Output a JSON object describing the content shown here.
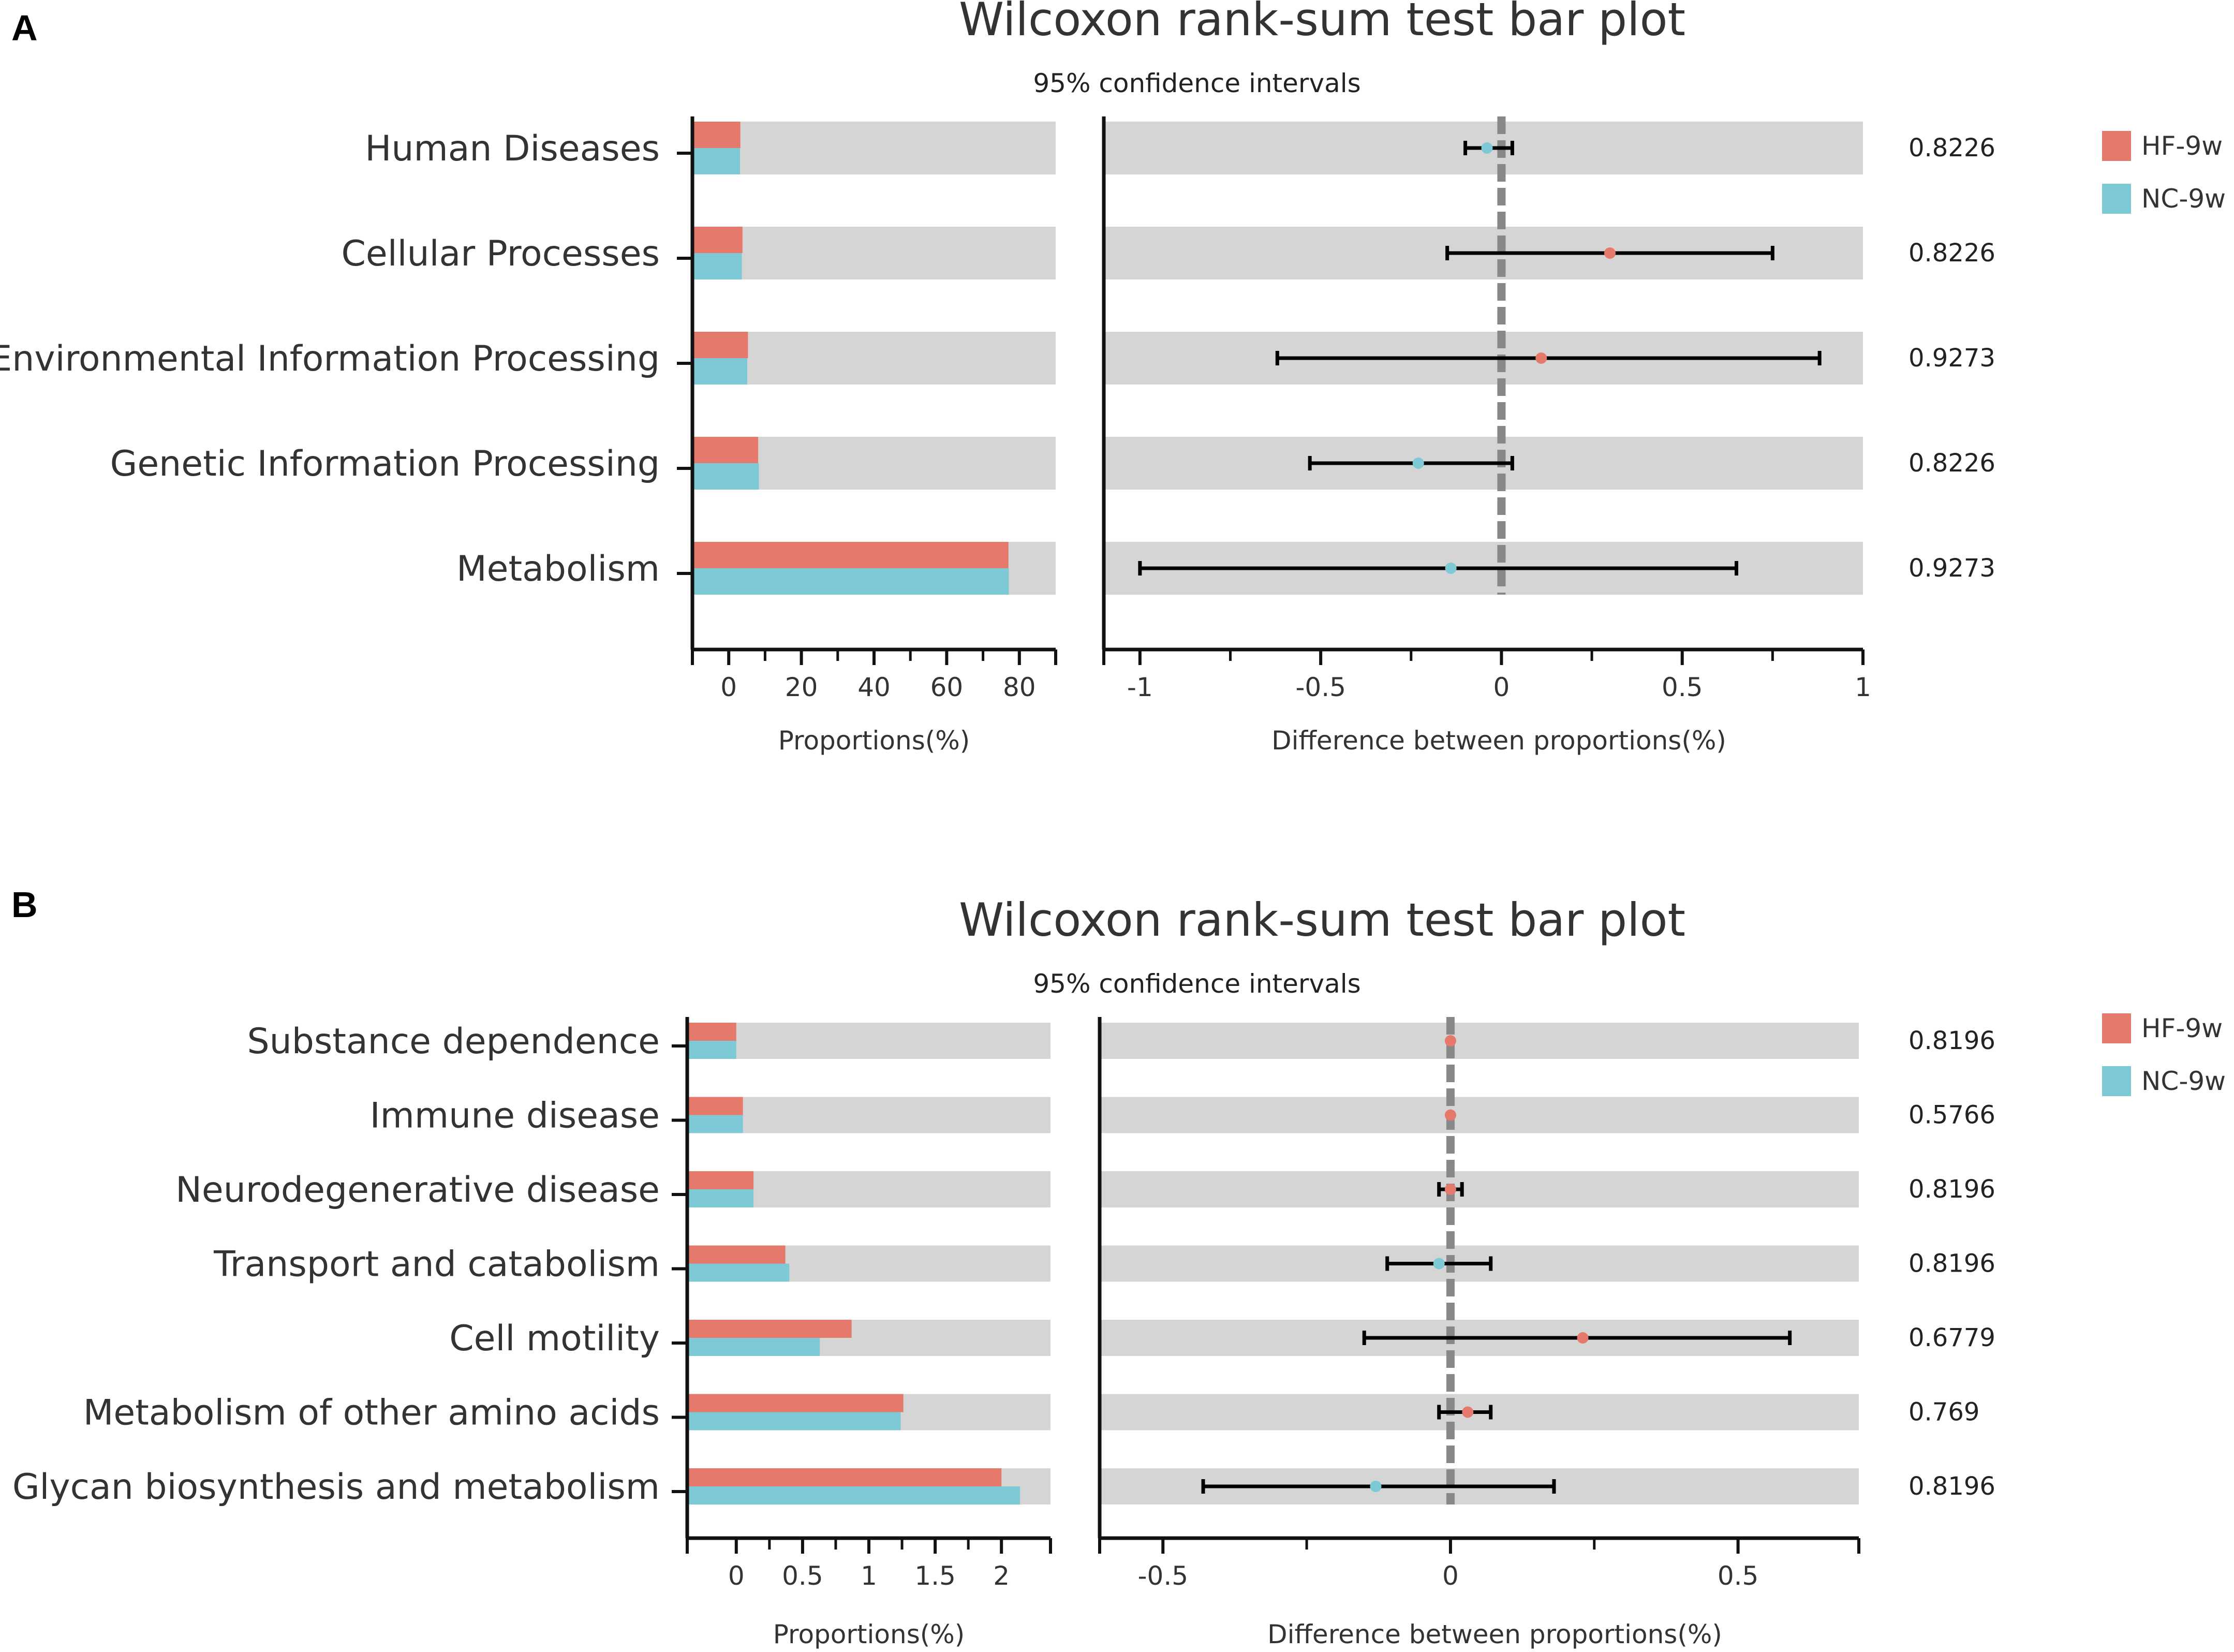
{
  "colors": {
    "hf": "#e57a6c",
    "nc": "#7ec9d6",
    "band": "#d5d5d5",
    "dash": "#888888",
    "axis": "#111111"
  },
  "chart_data": [
    {
      "panel": "A",
      "type": "bar",
      "title": "Wilcoxon rank-sum test bar plot",
      "subtitle": "95% confidence intervals",
      "categories": [
        "Human Diseases",
        "Cellular Processes",
        "Environmental Information Processing",
        "Genetic Information Processing",
        "Metabolism"
      ],
      "series": [
        {
          "name": "HF-9w",
          "values": [
            3.2,
            3.8,
            5.3,
            8.1,
            77.0
          ]
        },
        {
          "name": "NC-9w",
          "values": [
            3.1,
            3.6,
            5.1,
            8.3,
            77.1
          ]
        }
      ],
      "xlabel": "Proportions(%)",
      "xticks": [
        0,
        20,
        40,
        60,
        80
      ],
      "xlim": [
        -10,
        90
      ],
      "diff": {
        "xlabel": "Difference between proportions(%)",
        "xticks": [
          -1,
          -0.5,
          0,
          0.5,
          1
        ],
        "xlim": [
          -1.1,
          1.0
        ],
        "estimate": [
          -0.04,
          0.3,
          0.11,
          -0.23,
          -0.14
        ],
        "ci_low": [
          -0.1,
          -0.15,
          -0.62,
          -0.53,
          -1.0
        ],
        "ci_high": [
          0.03,
          0.75,
          0.88,
          0.03,
          0.65
        ],
        "higher": [
          "NC-9w",
          "HF-9w",
          "HF-9w",
          "NC-9w",
          "NC-9w"
        ]
      },
      "p_values": [
        "0.8226",
        "0.8226",
        "0.9273",
        "0.8226",
        "0.9273"
      ],
      "legend": [
        "HF-9w",
        "NC-9w"
      ]
    },
    {
      "panel": "B",
      "type": "bar",
      "title": "Wilcoxon rank-sum test bar plot",
      "subtitle": "95% confidence intervals",
      "categories": [
        "Substance dependence",
        "Immune disease",
        "Neurodegenerative disease",
        "Transport and catabolism",
        "Cell motility",
        "Metabolism of other amino acids",
        "Glycan biosynthesis and metabolism"
      ],
      "series": [
        {
          "name": "HF-9w",
          "values": [
            0.0,
            0.05,
            0.13,
            0.37,
            0.87,
            1.26,
            2.0
          ]
        },
        {
          "name": "NC-9w",
          "values": [
            0.0,
            0.05,
            0.13,
            0.4,
            0.63,
            1.24,
            2.14
          ]
        }
      ],
      "xlabel": "Proportions(%)",
      "xticks": [
        0,
        0.5,
        1,
        1.5,
        2
      ],
      "xticklabels": [
        "0",
        "0.5",
        "1",
        "1.5",
        "2"
      ],
      "xlim": [
        -0.37,
        2.37
      ],
      "diff": {
        "xlabel": "Difference between proportions(%)",
        "xticks": [
          -0.5,
          0,
          0.5
        ],
        "xlim": [
          -0.61,
          0.71
        ],
        "estimate": [
          0.0,
          0.0,
          0.0,
          -0.02,
          0.23,
          0.03,
          -0.13
        ],
        "ci_low": [
          0.0,
          0.0,
          -0.02,
          -0.11,
          -0.15,
          -0.02,
          -0.43
        ],
        "ci_high": [
          0.0,
          0.0,
          0.02,
          0.07,
          0.59,
          0.07,
          0.18
        ],
        "higher": [
          "HF-9w",
          "HF-9w",
          "HF-9w",
          "NC-9w",
          "HF-9w",
          "HF-9w",
          "NC-9w"
        ]
      },
      "p_values": [
        "0.8196",
        "0.5766",
        "0.8196",
        "0.8196",
        "0.6779",
        "0.769",
        "0.8196"
      ],
      "legend": [
        "HF-9w",
        "NC-9w"
      ]
    }
  ]
}
